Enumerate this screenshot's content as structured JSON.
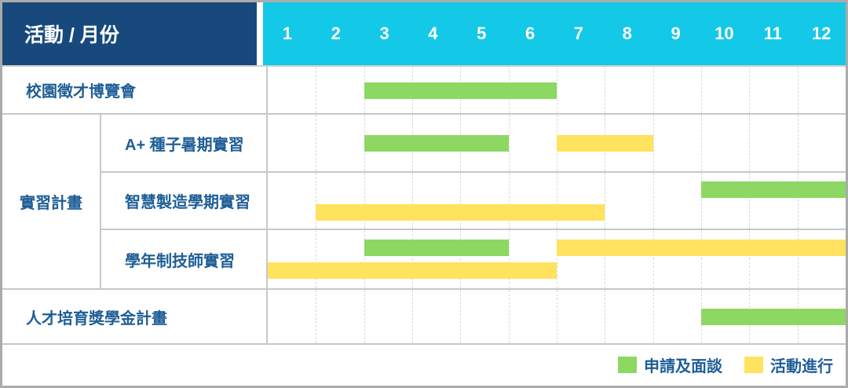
{
  "header": {
    "corner_label": "活動 / 月份",
    "months": [
      "1",
      "2",
      "3",
      "4",
      "5",
      "6",
      "7",
      "8",
      "9",
      "10",
      "11",
      "12"
    ]
  },
  "colors": {
    "header_bg": "#17497c",
    "month_header_bg": "#14c8e8",
    "label_text": "#1e5e96",
    "grid_line": "#c8c8c8",
    "bar_green": "#8cd863",
    "bar_yellow": "#ffe25e"
  },
  "group": {
    "label": "實習計畫"
  },
  "rows": [
    {
      "label": "校園徵才博覽會",
      "lines": [
        [
          {
            "color": "green",
            "start": 3,
            "end": 6
          }
        ]
      ]
    },
    {
      "label": "A+ 種子暑期實習",
      "lines": [
        [
          {
            "color": "green",
            "start": 3,
            "end": 5
          },
          {
            "color": "yellow",
            "start": 7,
            "end": 8
          }
        ]
      ]
    },
    {
      "label": "智慧製造學期實習",
      "lines": [
        [
          {
            "color": "green",
            "start": 10,
            "end": 12
          }
        ],
        [
          {
            "color": "yellow",
            "start": 2,
            "end": 7
          }
        ]
      ]
    },
    {
      "label": "學年制技師實習",
      "lines": [
        [
          {
            "color": "green",
            "start": 3,
            "end": 5
          },
          {
            "color": "yellow",
            "start": 7,
            "end": 12
          }
        ],
        [
          {
            "color": "yellow",
            "start": 1,
            "end": 6
          }
        ]
      ]
    },
    {
      "label": "人才培育獎學金計畫",
      "lines": [
        [
          {
            "color": "green",
            "start": 10,
            "end": 12
          }
        ]
      ]
    }
  ],
  "legend": [
    {
      "label": "申請及面談",
      "color": "green"
    },
    {
      "label": "活動進行",
      "color": "yellow"
    }
  ],
  "chart_data": {
    "type": "table",
    "subtype": "gantt",
    "title": "活動 / 月份",
    "x_categories": [
      1,
      2,
      3,
      4,
      5,
      6,
      7,
      8,
      9,
      10,
      11,
      12
    ],
    "legend_entries": [
      {
        "label": "申請及面談",
        "color_hex": "#8cd863"
      },
      {
        "label": "活動進行",
        "color_hex": "#ffe25e"
      }
    ],
    "tasks": [
      {
        "group": null,
        "activity": "校園徵才博覽會",
        "phases": [
          {
            "phase": "申請及面談",
            "month_start": 3,
            "month_end": 6
          }
        ]
      },
      {
        "group": "實習計畫",
        "activity": "A+ 種子暑期實習",
        "phases": [
          {
            "phase": "申請及面談",
            "month_start": 3,
            "month_end": 5
          },
          {
            "phase": "活動進行",
            "month_start": 7,
            "month_end": 8
          }
        ]
      },
      {
        "group": "實習計畫",
        "activity": "智慧製造學期實習",
        "phases": [
          {
            "phase": "申請及面談",
            "month_start": 10,
            "month_end": 12
          },
          {
            "phase": "活動進行",
            "month_start": 2,
            "month_end": 7
          }
        ]
      },
      {
        "group": "實習計畫",
        "activity": "學年制技師實習",
        "phases": [
          {
            "phase": "申請及面談",
            "month_start": 3,
            "month_end": 5
          },
          {
            "phase": "活動進行",
            "month_start": 7,
            "month_end": 12
          },
          {
            "phase": "活動進行",
            "month_start": 1,
            "month_end": 6
          }
        ]
      },
      {
        "group": null,
        "activity": "人才培育獎學金計畫",
        "phases": [
          {
            "phase": "申請及面談",
            "month_start": 10,
            "month_end": 12
          }
        ]
      }
    ]
  }
}
